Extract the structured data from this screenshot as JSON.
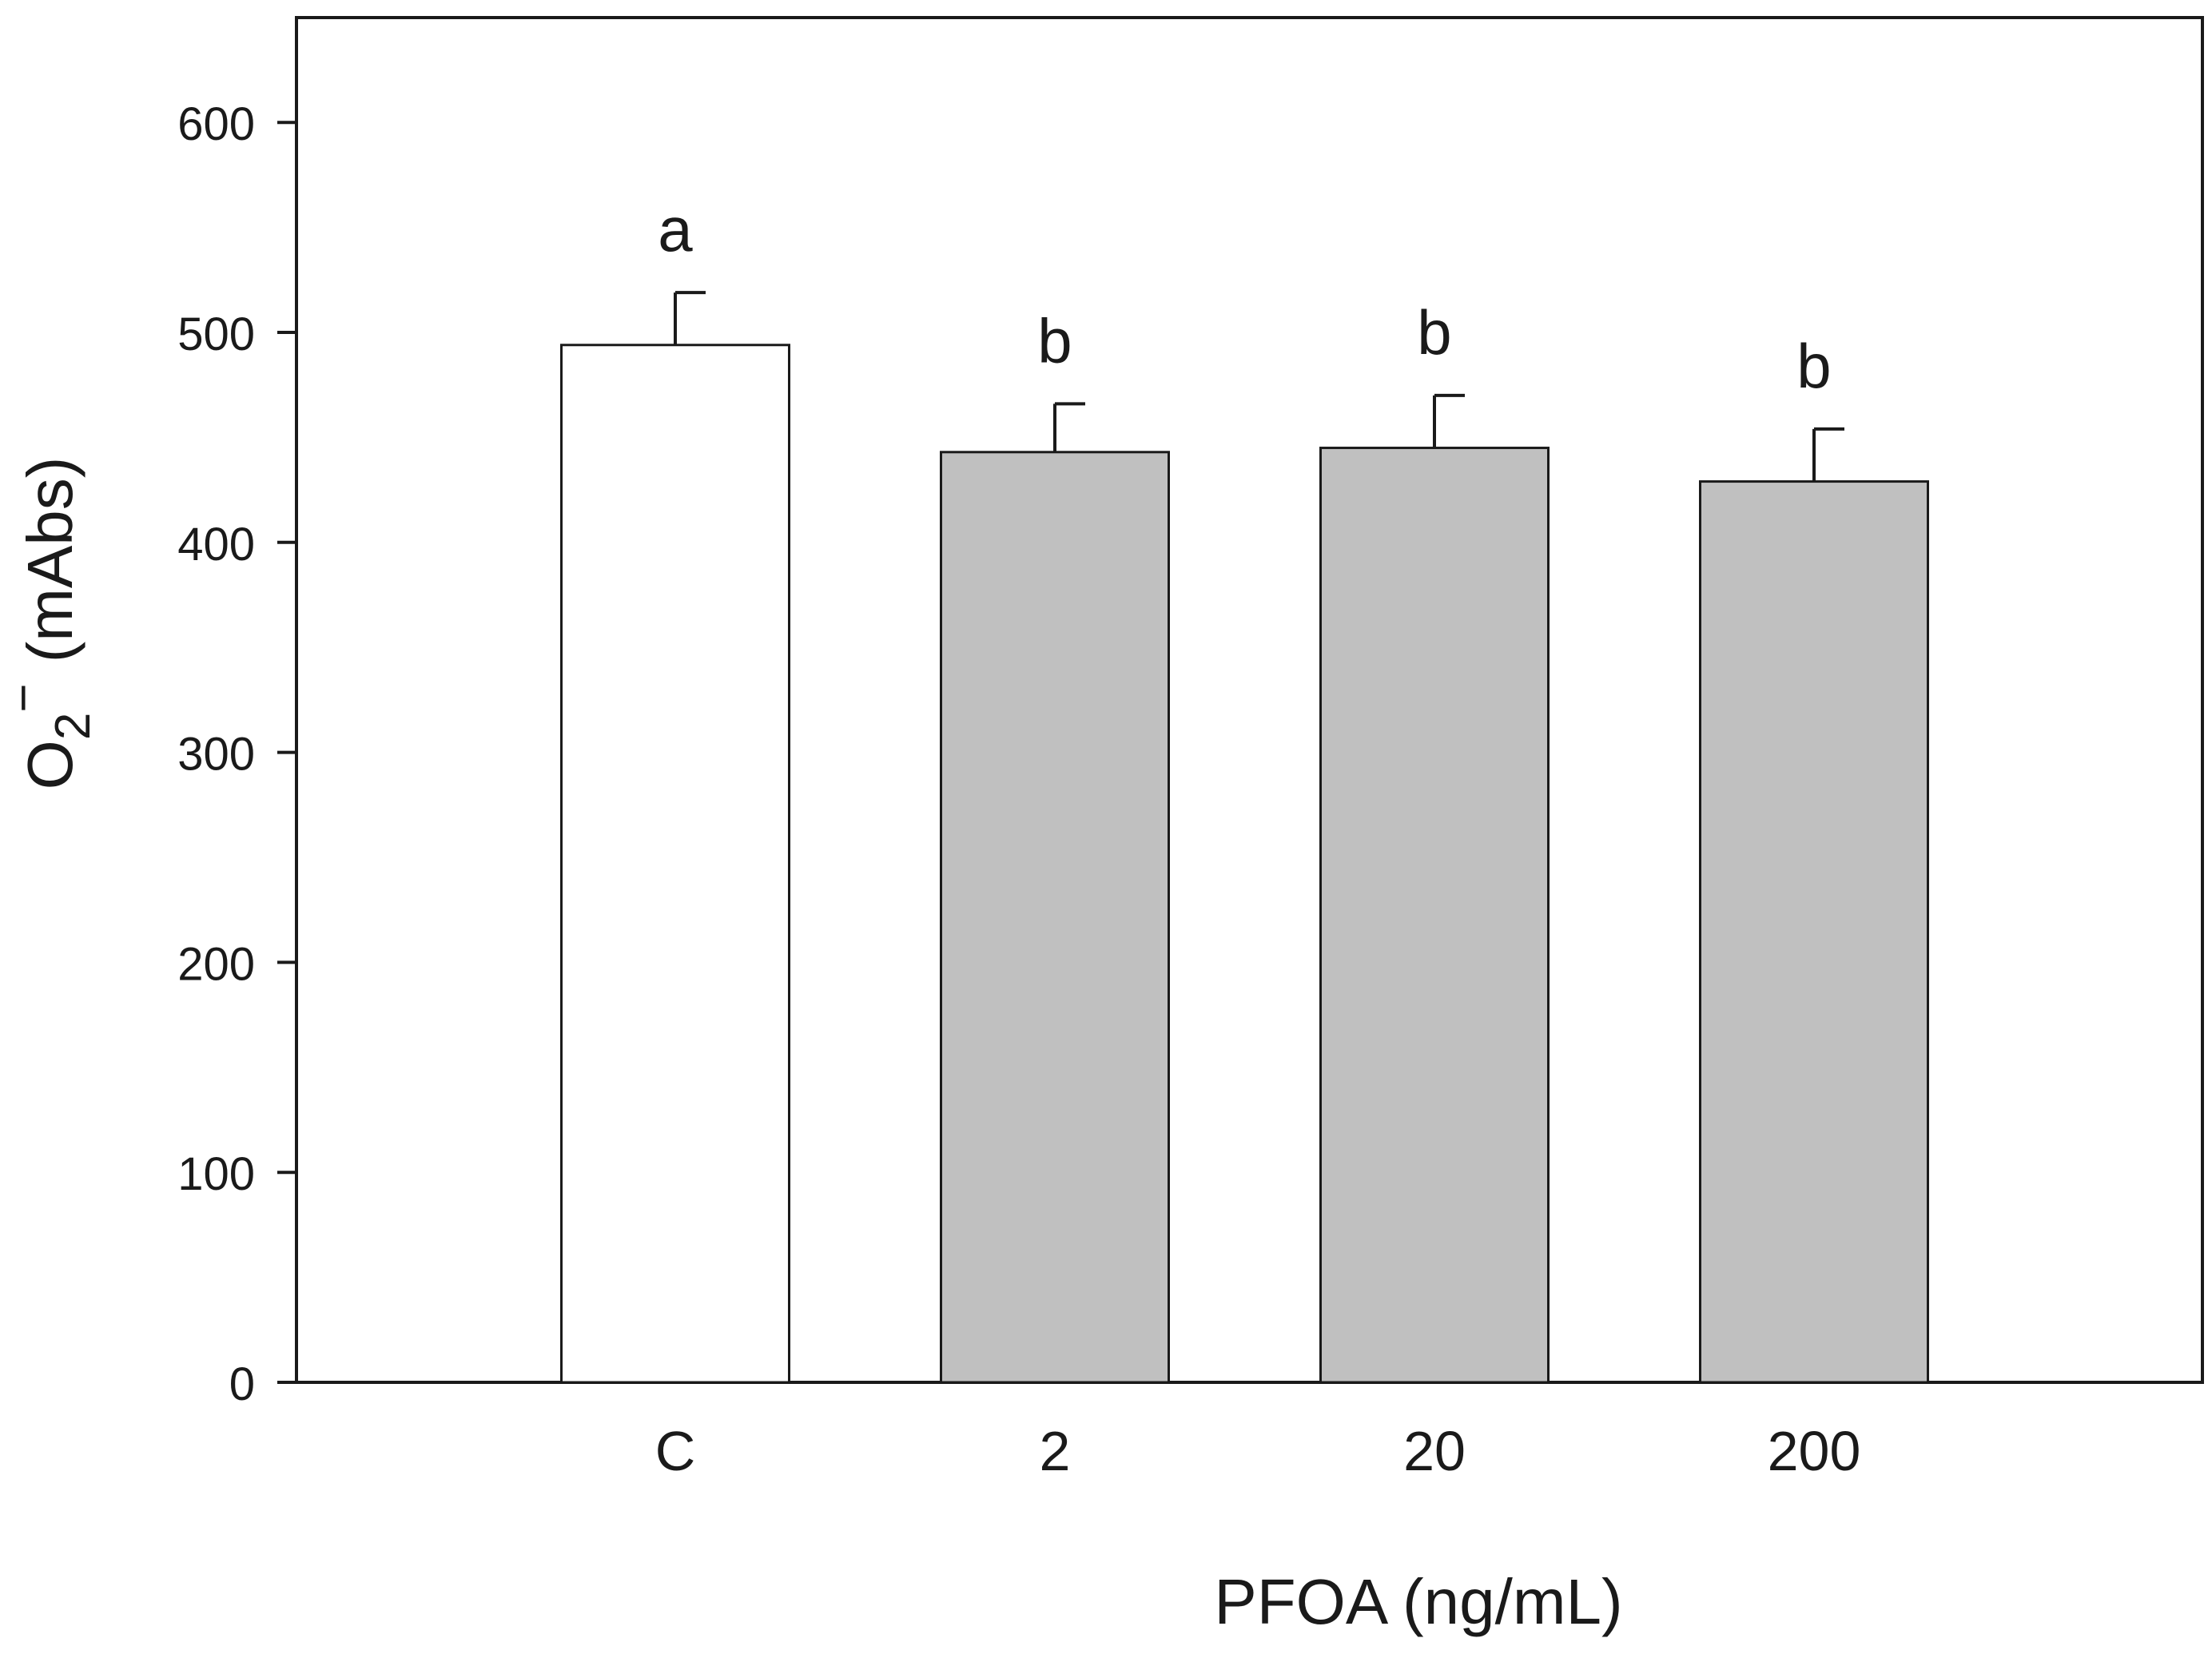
{
  "chart_data": {
    "type": "bar",
    "title": "",
    "xlabel": "PFOA (ng/mL)",
    "ylabel": {
      "main": "O",
      "subscript": "2",
      "superscript": "−",
      "unit": "(mAbs)"
    },
    "categories": [
      "C",
      "2",
      "20",
      "200"
    ],
    "values": [
      494,
      443,
      445,
      429
    ],
    "errors": [
      25,
      23,
      25,
      25
    ],
    "labels": [
      "a",
      "b",
      "b",
      "b"
    ],
    "colors": [
      "#ffffff",
      "#c0c0c0",
      "#c0c0c0",
      "#c0c0c0"
    ],
    "ylim": [
      0,
      650
    ],
    "yticks": [
      0,
      100,
      200,
      300,
      400,
      500,
      600
    ],
    "grid": false
  }
}
